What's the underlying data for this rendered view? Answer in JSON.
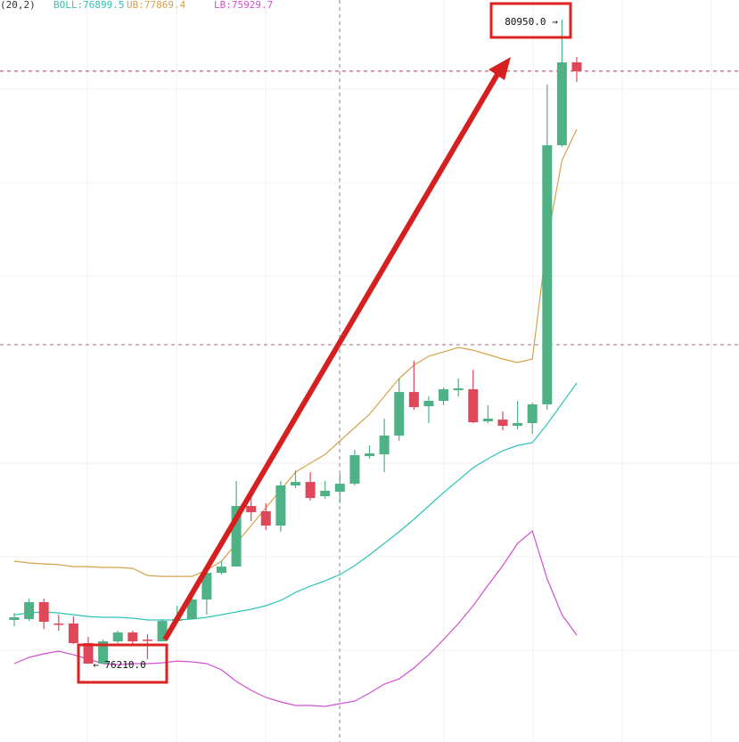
{
  "chart_data": {
    "type": "candlestick",
    "indicator_label": "(20,2)",
    "ylim": [
      75633,
      81094
    ],
    "up_color": "#4fb286",
    "down_color": "#e0485a",
    "open": [
      76531,
      76538,
      76662,
      76505,
      76505,
      76361,
      76210,
      76374,
      76439,
      76387,
      76374,
      76524,
      76538,
      76682,
      76878,
      76924,
      77370,
      77331,
      77226,
      77521,
      77547,
      77442,
      77475,
      77534,
      77737,
      77750,
      77888,
      78209,
      78104,
      78144,
      78222,
      78229,
      77993,
      78006,
      77960,
      77980,
      78118,
      80025,
      80635
    ],
    "high": [
      76583,
      76688,
      76688,
      76570,
      76557,
      76406,
      76387,
      76452,
      76452,
      76426,
      76538,
      76636,
      76701,
      76898,
      76964,
      77554,
      77455,
      77390,
      77554,
      77632,
      77619,
      77554,
      77606,
      77783,
      77816,
      78013,
      78308,
      78439,
      78177,
      78242,
      78308,
      78373,
      78111,
      78065,
      78144,
      78131,
      80471,
      80950,
      80674
    ],
    "low": [
      76485,
      76524,
      76465,
      76452,
      76354,
      76210,
      76210,
      76361,
      76341,
      76243,
      76374,
      76505,
      76538,
      76570,
      76865,
      76924,
      77259,
      77193,
      77180,
      77501,
      77410,
      77423,
      77390,
      77521,
      77718,
      77619,
      77849,
      78078,
      77980,
      78111,
      78177,
      77980,
      77980,
      77927,
      77934,
      77901,
      78078,
      80012,
      80491
    ],
    "close": [
      76551,
      76662,
      76518,
      76498,
      76361,
      76210,
      76374,
      76439,
      76374,
      76380,
      76524,
      76538,
      76682,
      76878,
      76924,
      77370,
      77324,
      77226,
      77521,
      77547,
      77429,
      77482,
      77534,
      77744,
      77757,
      77888,
      78209,
      78098,
      78144,
      78229,
      78236,
      77986,
      78013,
      77960,
      77980,
      78118,
      80025,
      80635,
      80570
    ],
    "series": [
      {
        "name": "BOLL:76899.5",
        "color": "#2ec4b6",
        "values": [
          76570,
          76583,
          76590,
          76583,
          76570,
          76557,
          76551,
          76551,
          76544,
          76531,
          76531,
          76531,
          76538,
          76551,
          76570,
          76590,
          76610,
          76636,
          76675,
          76734,
          76780,
          76819,
          76865,
          76931,
          77010,
          77095,
          77180,
          77272,
          77370,
          77469,
          77560,
          77652,
          77718,
          77777,
          77816,
          77836,
          77973,
          78124,
          78275
        ]
      },
      {
        "name": "UB:77869.4",
        "color": "#d4a24a",
        "values": [
          76964,
          76951,
          76944,
          76938,
          76924,
          76924,
          76918,
          76918,
          76911,
          76859,
          76852,
          76852,
          76852,
          76898,
          76964,
          77095,
          77226,
          77357,
          77488,
          77619,
          77685,
          77750,
          77849,
          77947,
          78045,
          78177,
          78308,
          78406,
          78472,
          78504,
          78537,
          78517,
          78485,
          78452,
          78426,
          78452,
          79324,
          79914,
          80143
        ]
      },
      {
        "name": "LB:75929.7",
        "color": "#d050d0",
        "values": [
          76210,
          76256,
          76282,
          76302,
          76275,
          76243,
          76210,
          76203,
          76210,
          76210,
          76216,
          76229,
          76223,
          76210,
          76164,
          76079,
          76013,
          75961,
          75928,
          75902,
          75902,
          75895,
          75915,
          75934,
          75993,
          76059,
          76098,
          76177,
          76275,
          76387,
          76505,
          76636,
          76787,
          76931,
          77095,
          77187,
          76833,
          76570,
          76420
        ]
      }
    ],
    "crosshair_price": 78557,
    "annotations": [
      {
        "text": "80950.0 →",
        "color": "#dd2222"
      },
      {
        "text": "← 76210.0",
        "color": "#dd2222"
      }
    ]
  }
}
